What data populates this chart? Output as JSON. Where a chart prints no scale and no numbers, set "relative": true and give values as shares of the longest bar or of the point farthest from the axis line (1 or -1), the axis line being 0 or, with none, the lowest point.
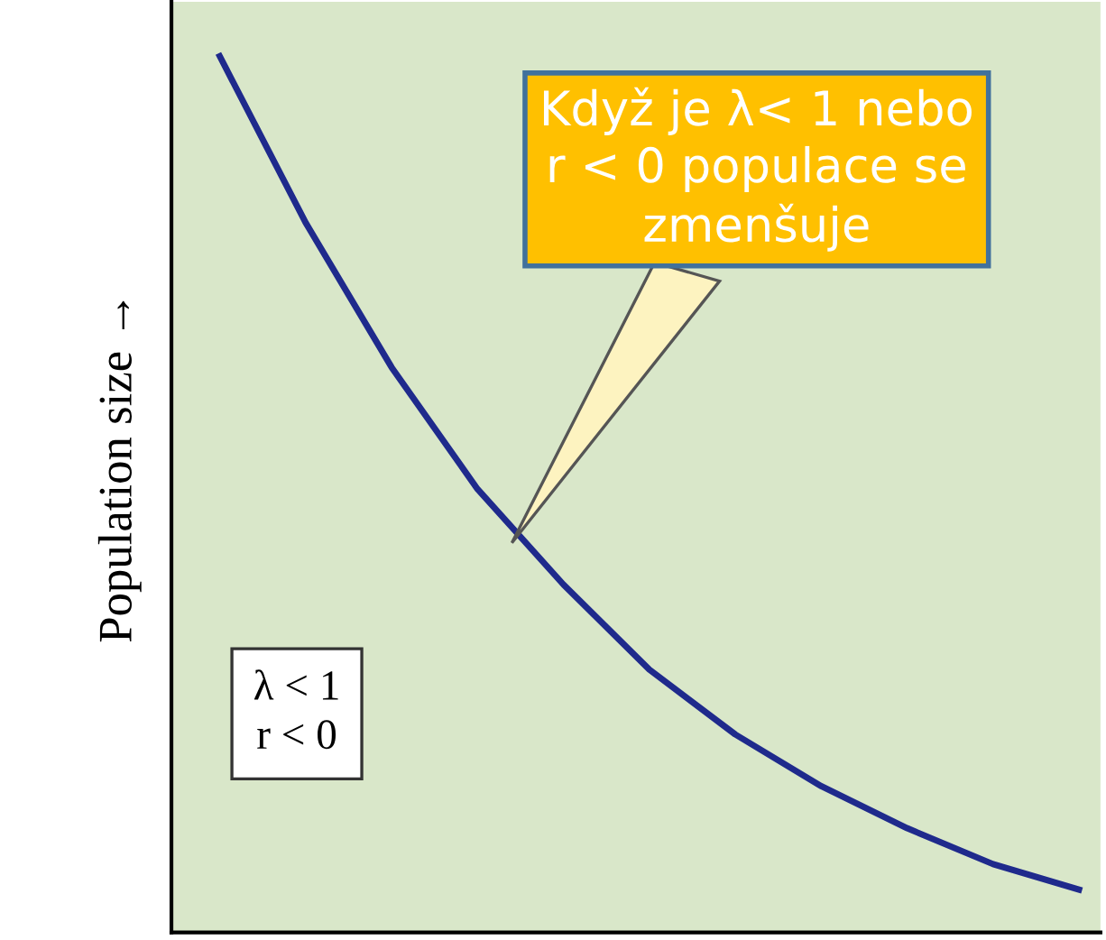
{
  "chart_data": {
    "type": "line",
    "relative": true,
    "ylabel": "Population size →",
    "categories": [
      null,
      null,
      null,
      null,
      null,
      null,
      null,
      null,
      null,
      null,
      null
    ],
    "series": [
      {
        "color": "#1f2a8c",
        "values": [
          1.0,
          0.81,
          0.645,
          0.506,
          0.397,
          0.3,
          0.226,
          0.167,
          0.119,
          0.078,
          0.049
        ]
      }
    ],
    "annotations": [
      "Když je λ< 1 nebo\nr < 0 populace se\nzmenšuje",
      "λ < 1\nr < 0"
    ],
    "tick_labels": false,
    "legend": false,
    "marker": "none",
    "line_style": "solid"
  }
}
